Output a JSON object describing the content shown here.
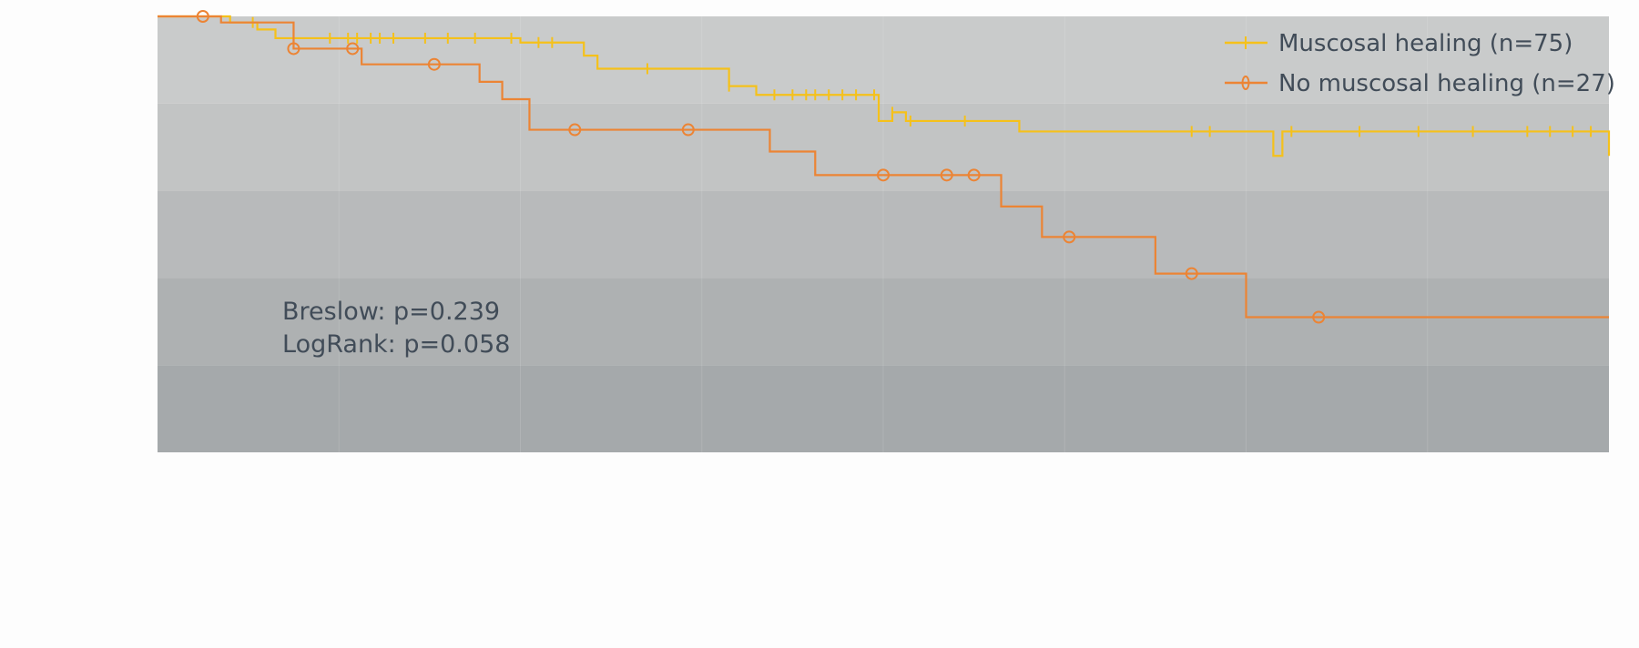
{
  "chart_data": {
    "type": "line",
    "subtype": "kaplan-meier step",
    "title": "",
    "xlabel": "",
    "ylabel": "",
    "xlim": [
      0,
      160
    ],
    "ylim": [
      0.5,
      1.0
    ],
    "grid": "horizontal alternating bands",
    "legend_position": "top-right",
    "series": [
      {
        "name": "Muscosal healing (n=75)",
        "color": "#f5c11a",
        "marker": "tick",
        "steps": [
          [
            0,
            1.0
          ],
          [
            8,
            0.993
          ],
          [
            11,
            0.985
          ],
          [
            13,
            0.975
          ],
          [
            40,
            0.97
          ],
          [
            47,
            0.955
          ],
          [
            48.5,
            0.94
          ],
          [
            63,
            0.92
          ],
          [
            66,
            0.91
          ],
          [
            81,
            0.89
          ],
          [
            82.5,
            0.88
          ],
          [
            79.5,
            0.88
          ],
          [
            95,
            0.868
          ],
          [
            124,
            0.868
          ],
          [
            122,
            0.868
          ],
          [
            123,
            0.84
          ],
          [
            160,
            0.84
          ]
        ],
        "censored_x": [
          10.5,
          19,
          21,
          22,
          23.5,
          24.5,
          26,
          29.5,
          32,
          35,
          39,
          42,
          43.5,
          54,
          63,
          68,
          70,
          71.5,
          72.5,
          74,
          75.5,
          77,
          79,
          81,
          83,
          89,
          114,
          116,
          125,
          132.5,
          139,
          145,
          151,
          153.5,
          156,
          158
        ]
      },
      {
        "name": "No muscosal healing (n=27)",
        "color": "#ec8434",
        "marker": "circle",
        "steps": [
          [
            0,
            1.0
          ],
          [
            7,
            0.993
          ],
          [
            15,
            0.986
          ],
          [
            15,
            0.963
          ],
          [
            22,
            0.963
          ],
          [
            22.5,
            0.945
          ],
          [
            35.5,
            0.945
          ],
          [
            35.5,
            0.925
          ],
          [
            38,
            0.905
          ],
          [
            41,
            0.87
          ],
          [
            67.5,
            0.87
          ],
          [
            67.5,
            0.845
          ],
          [
            72.5,
            0.818
          ],
          [
            93,
            0.818
          ],
          [
            93,
            0.782
          ],
          [
            97.5,
            0.747
          ],
          [
            110,
            0.747
          ],
          [
            110,
            0.705
          ],
          [
            120,
            0.705
          ],
          [
            120,
            0.655
          ],
          [
            160,
            0.655
          ]
        ],
        "censored_x": [
          5,
          15,
          21.5,
          30.5,
          46,
          58.5,
          80,
          87,
          90,
          100.5,
          114,
          128
        ]
      }
    ],
    "annotations": [
      "Breslow: p=0.239",
      "LogRank: p=0.058"
    ]
  },
  "colors": {
    "band_top": "#c9cbcb",
    "band_bottom": "#a5a9ab",
    "text": "#414c58"
  }
}
